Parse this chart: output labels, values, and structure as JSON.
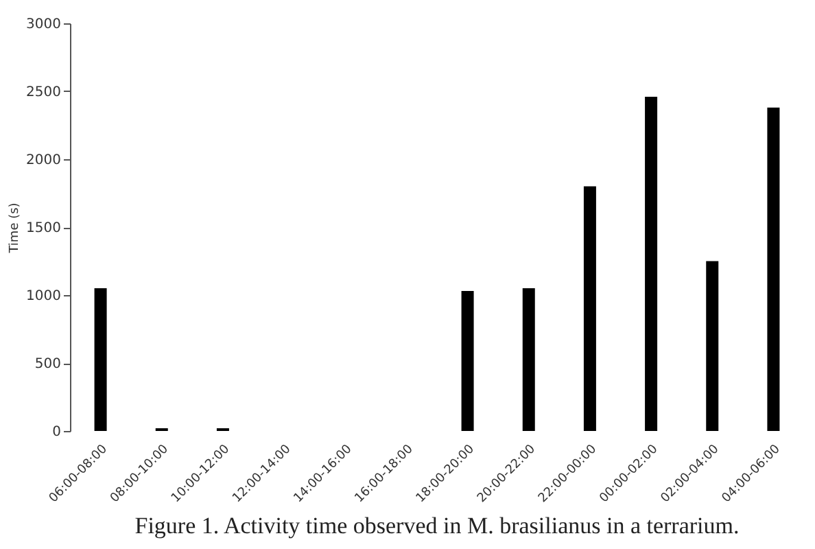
{
  "chart_data": {
    "type": "bar",
    "ylabel": "Time (s)",
    "categories": [
      "06:00-08:00",
      "08:00-10:00",
      "10:00-12:00",
      "12:00-14:00",
      "14:00-16:00",
      "16:00-18:00",
      "18:00-20:00",
      "20:00-22:00",
      "22:00-00:00",
      "00:00-02:00",
      "02:00-04:00",
      "04:00-06:00"
    ],
    "values": [
      1050,
      20,
      20,
      0,
      0,
      0,
      1030,
      1050,
      1800,
      2460,
      1250,
      2380
    ],
    "color": "#000000",
    "ylim": [
      0,
      3000
    ],
    "yticks": [
      0,
      500,
      1000,
      1500,
      2000,
      2500,
      3000
    ],
    "grid": false,
    "annotations": [
      "Figure 1. Activity time observed in M. brasilianus in a terrarium."
    ]
  }
}
